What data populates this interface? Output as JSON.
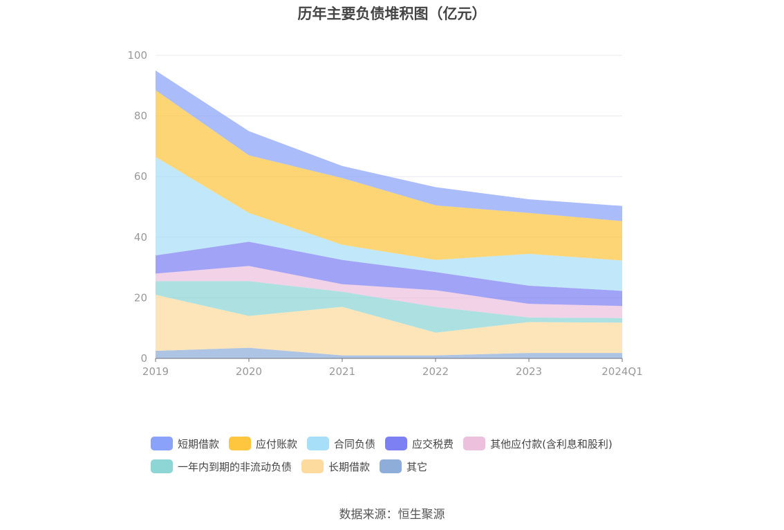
{
  "title": "历年主要负债堆积图（亿元）",
  "source": "数据来源：恒生聚源",
  "chart_data": {
    "type": "area",
    "stacked": true,
    "categories": [
      "2019",
      "2020",
      "2021",
      "2022",
      "2023",
      "2024Q1"
    ],
    "ylim": [
      0,
      100
    ],
    "yticks": [
      0,
      20,
      40,
      60,
      80,
      100
    ],
    "grid": true,
    "legend_position": "bottom",
    "series": [
      {
        "name": "其它",
        "color": "#8eadd9",
        "values": [
          2.5,
          3.5,
          1.0,
          1.0,
          1.8,
          1.8
        ]
      },
      {
        "name": "长期借款",
        "color": "#fddb9e",
        "values": [
          18.5,
          10.5,
          16.0,
          7.5,
          10.2,
          10.0
        ]
      },
      {
        "name": "一年内到期的非流动负债",
        "color": "#8ed6d6",
        "values": [
          4.5,
          11.5,
          5.0,
          8.5,
          1.5,
          1.5
        ]
      },
      {
        "name": "其他应付款(含利息和股利)",
        "color": "#edc1de",
        "values": [
          2.5,
          5.0,
          2.5,
          5.5,
          4.5,
          4.0
        ]
      },
      {
        "name": "应交税费",
        "color": "#7d80f2",
        "values": [
          6.0,
          8.0,
          8.0,
          6.0,
          6.0,
          5.0
        ]
      },
      {
        "name": "合同负债",
        "color": "#a7def8",
        "values": [
          32.5,
          9.5,
          5.0,
          4.0,
          10.5,
          10.0
        ]
      },
      {
        "name": "应付账款",
        "color": "#fec53f",
        "values": [
          22.0,
          19.0,
          22.0,
          18.0,
          13.5,
          13.0
        ]
      },
      {
        "name": "短期借款",
        "color": "#8aa2fa",
        "values": [
          6.5,
          8.0,
          4.0,
          6.0,
          4.5,
          5.0
        ]
      }
    ]
  },
  "legend_order": [
    7,
    6,
    5,
    4,
    3,
    2,
    1,
    0
  ]
}
